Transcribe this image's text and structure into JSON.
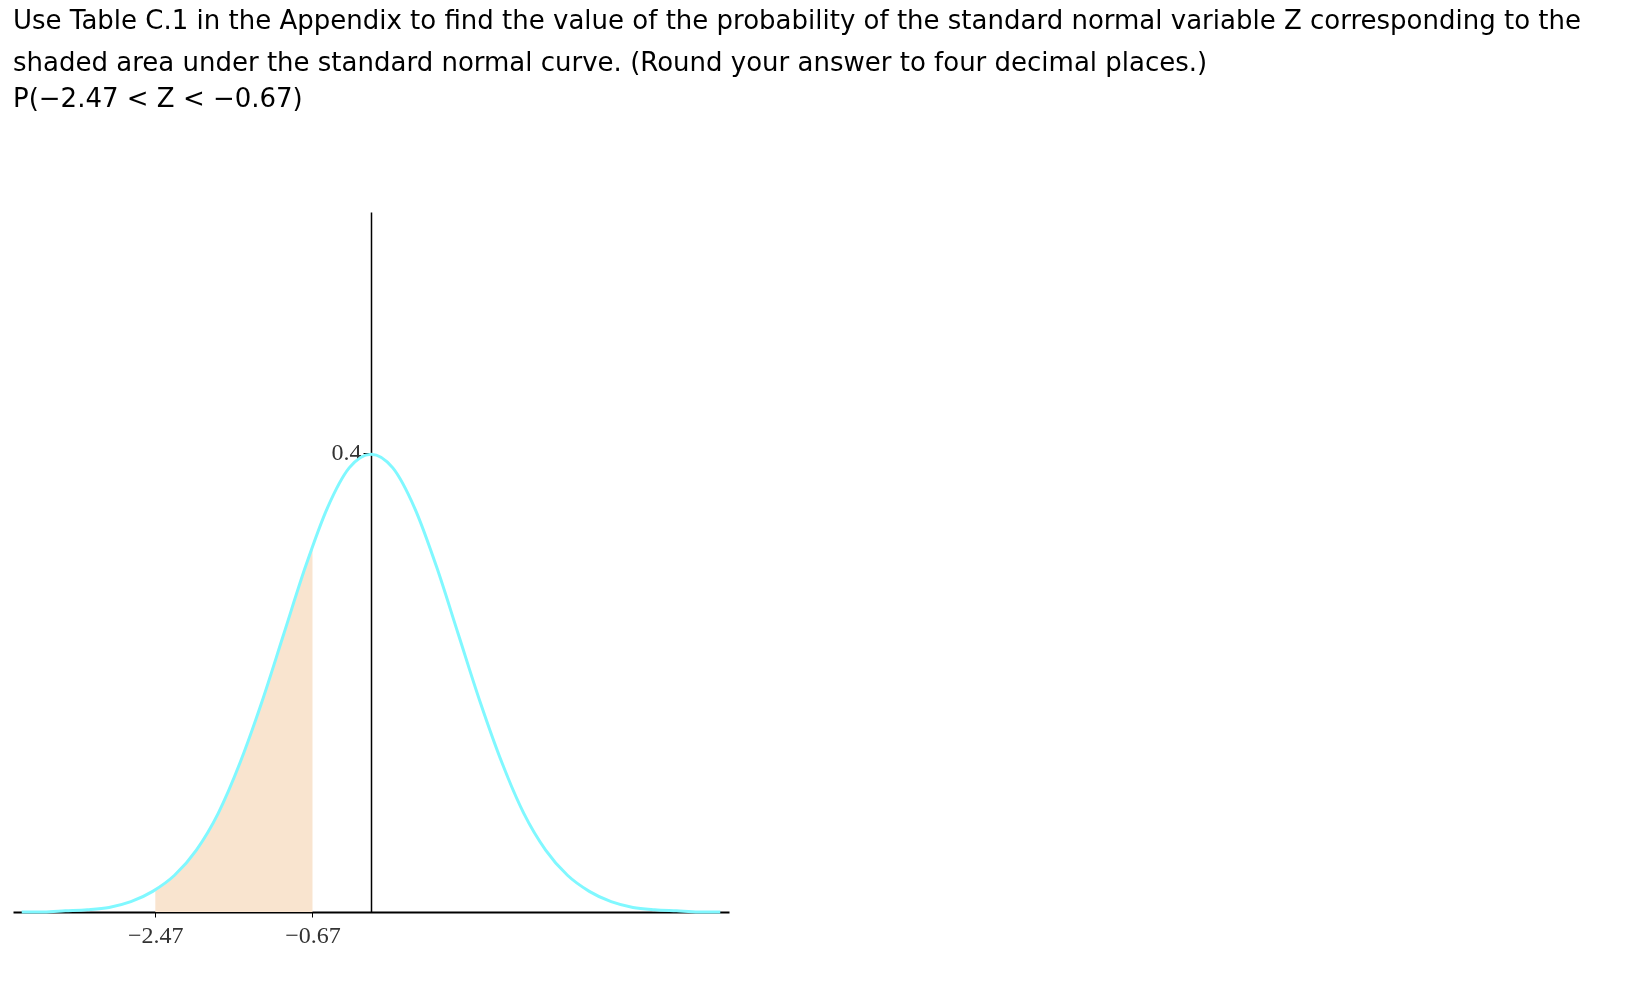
{
  "chart_data": {
    "type": "line",
    "title": [
      "Use Table C.1 in the Appendix to find the value of the probability of the standard normal variable Z corresponding to the",
      "shaded area under the standard normal curve. (Round your answer to four decimal places.)"
    ],
    "subtitle": "P(−2.47 < Z < −0.67)",
    "series": [
      {
        "type": "area",
        "color": "#f9e4cf",
        "x": [
          -2.47,
          -2.25,
          -2.0,
          -1.75,
          -1.5,
          -1.25,
          -1.0,
          -0.67
        ],
        "values": [
          0.019,
          0.032,
          0.054,
          0.086,
          0.13,
          0.183,
          0.242,
          0.319
        ]
      },
      {
        "color": "#80f8ff",
        "x": [
          -4.0,
          -3.75,
          -3.5,
          -3.25,
          -3.0,
          -2.75,
          -2.5,
          -2.25,
          -2.0,
          -1.75,
          -1.5,
          -1.25,
          -1.0,
          -0.75,
          -0.5,
          -0.25,
          0.0,
          0.25,
          0.5,
          0.75,
          1.0,
          1.25,
          1.5,
          1.75,
          2.0,
          2.25,
          2.5,
          2.75,
          3.0,
          3.25,
          3.5,
          3.75,
          4.0
        ],
        "values": [
          0.0,
          0.0,
          0.001,
          0.002,
          0.004,
          0.009,
          0.018,
          0.032,
          0.054,
          0.086,
          0.13,
          0.183,
          0.242,
          0.301,
          0.352,
          0.387,
          0.399,
          0.387,
          0.352,
          0.301,
          0.242,
          0.183,
          0.13,
          0.086,
          0.054,
          0.032,
          0.018,
          0.009,
          0.004,
          0.002,
          0.001,
          0.0,
          0.0
        ]
      }
    ],
    "xlim": [
      -4.1,
      4.1
    ],
    "ylim": [
      0,
      0.61
    ],
    "xticks": [
      {
        "value": -2.47,
        "label": "−2.47"
      },
      {
        "value": -0.67,
        "label": "−0.67"
      }
    ],
    "yticks": [
      0.4
    ],
    "grid": false
  }
}
